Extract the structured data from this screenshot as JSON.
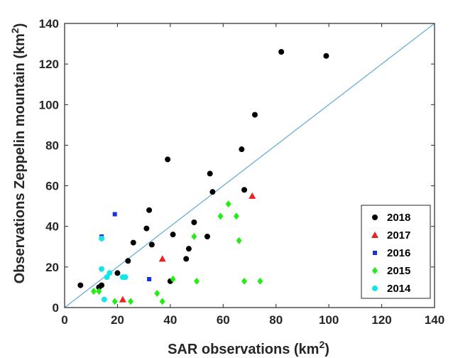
{
  "chart_data": {
    "type": "scatter",
    "xlabel": "SAR observations (km",
    "xlabel_sup": "2",
    "xlabel_end": ")",
    "ylabel": "Observations Zeppelin mountain (km",
    "ylabel_sup": "2",
    "ylabel_end": ")",
    "xlim": [
      0,
      140
    ],
    "ylim": [
      0,
      140
    ],
    "xticks": [
      "0",
      "20",
      "40",
      "60",
      "80",
      "100",
      "120",
      "140"
    ],
    "yticks": [
      "0",
      "20",
      "40",
      "60",
      "80",
      "100",
      "120",
      "140"
    ],
    "grid": false,
    "legend_position": "bottom-right",
    "reference_line": {
      "type": "identity",
      "color": "#6aaed6"
    },
    "series": [
      {
        "name": "2018",
        "color": "#000000",
        "marker": "circle",
        "points": [
          [
            6,
            11
          ],
          [
            13,
            10
          ],
          [
            14,
            11
          ],
          [
            20,
            17
          ],
          [
            24,
            23
          ],
          [
            26,
            32
          ],
          [
            31,
            39
          ],
          [
            32,
            48
          ],
          [
            33,
            31
          ],
          [
            39,
            73
          ],
          [
            40,
            13
          ],
          [
            41,
            36
          ],
          [
            46,
            24
          ],
          [
            47,
            29
          ],
          [
            49,
            42
          ],
          [
            54,
            35
          ],
          [
            55,
            66
          ],
          [
            56,
            57
          ],
          [
            67,
            78
          ],
          [
            68,
            58
          ],
          [
            72,
            95
          ],
          [
            82,
            126
          ],
          [
            99,
            124
          ]
        ]
      },
      {
        "name": "2017",
        "color": "#e8231d",
        "marker": "triangle",
        "points": [
          [
            22,
            4
          ],
          [
            37,
            24
          ],
          [
            71,
            55
          ]
        ]
      },
      {
        "name": "2016",
        "color": "#1530e6",
        "marker": "square",
        "points": [
          [
            14,
            35
          ],
          [
            19,
            46
          ],
          [
            32,
            14
          ]
        ]
      },
      {
        "name": "2015",
        "color": "#22ee14",
        "marker": "diamond",
        "points": [
          [
            11,
            8
          ],
          [
            13,
            8
          ],
          [
            19,
            3
          ],
          [
            25,
            3
          ],
          [
            35,
            7
          ],
          [
            37,
            3
          ],
          [
            41,
            14
          ],
          [
            49,
            35
          ],
          [
            50,
            13
          ],
          [
            59,
            45
          ],
          [
            62,
            51
          ],
          [
            65,
            45
          ],
          [
            66,
            33
          ],
          [
            68,
            13
          ],
          [
            74,
            13
          ]
        ]
      },
      {
        "name": "2014",
        "color": "#16e5e5",
        "marker": "circle",
        "points": [
          [
            14,
            19
          ],
          [
            14,
            34
          ],
          [
            15,
            4
          ],
          [
            16,
            15
          ],
          [
            17,
            17
          ],
          [
            22,
            15
          ],
          [
            23,
            15
          ]
        ]
      }
    ]
  }
}
